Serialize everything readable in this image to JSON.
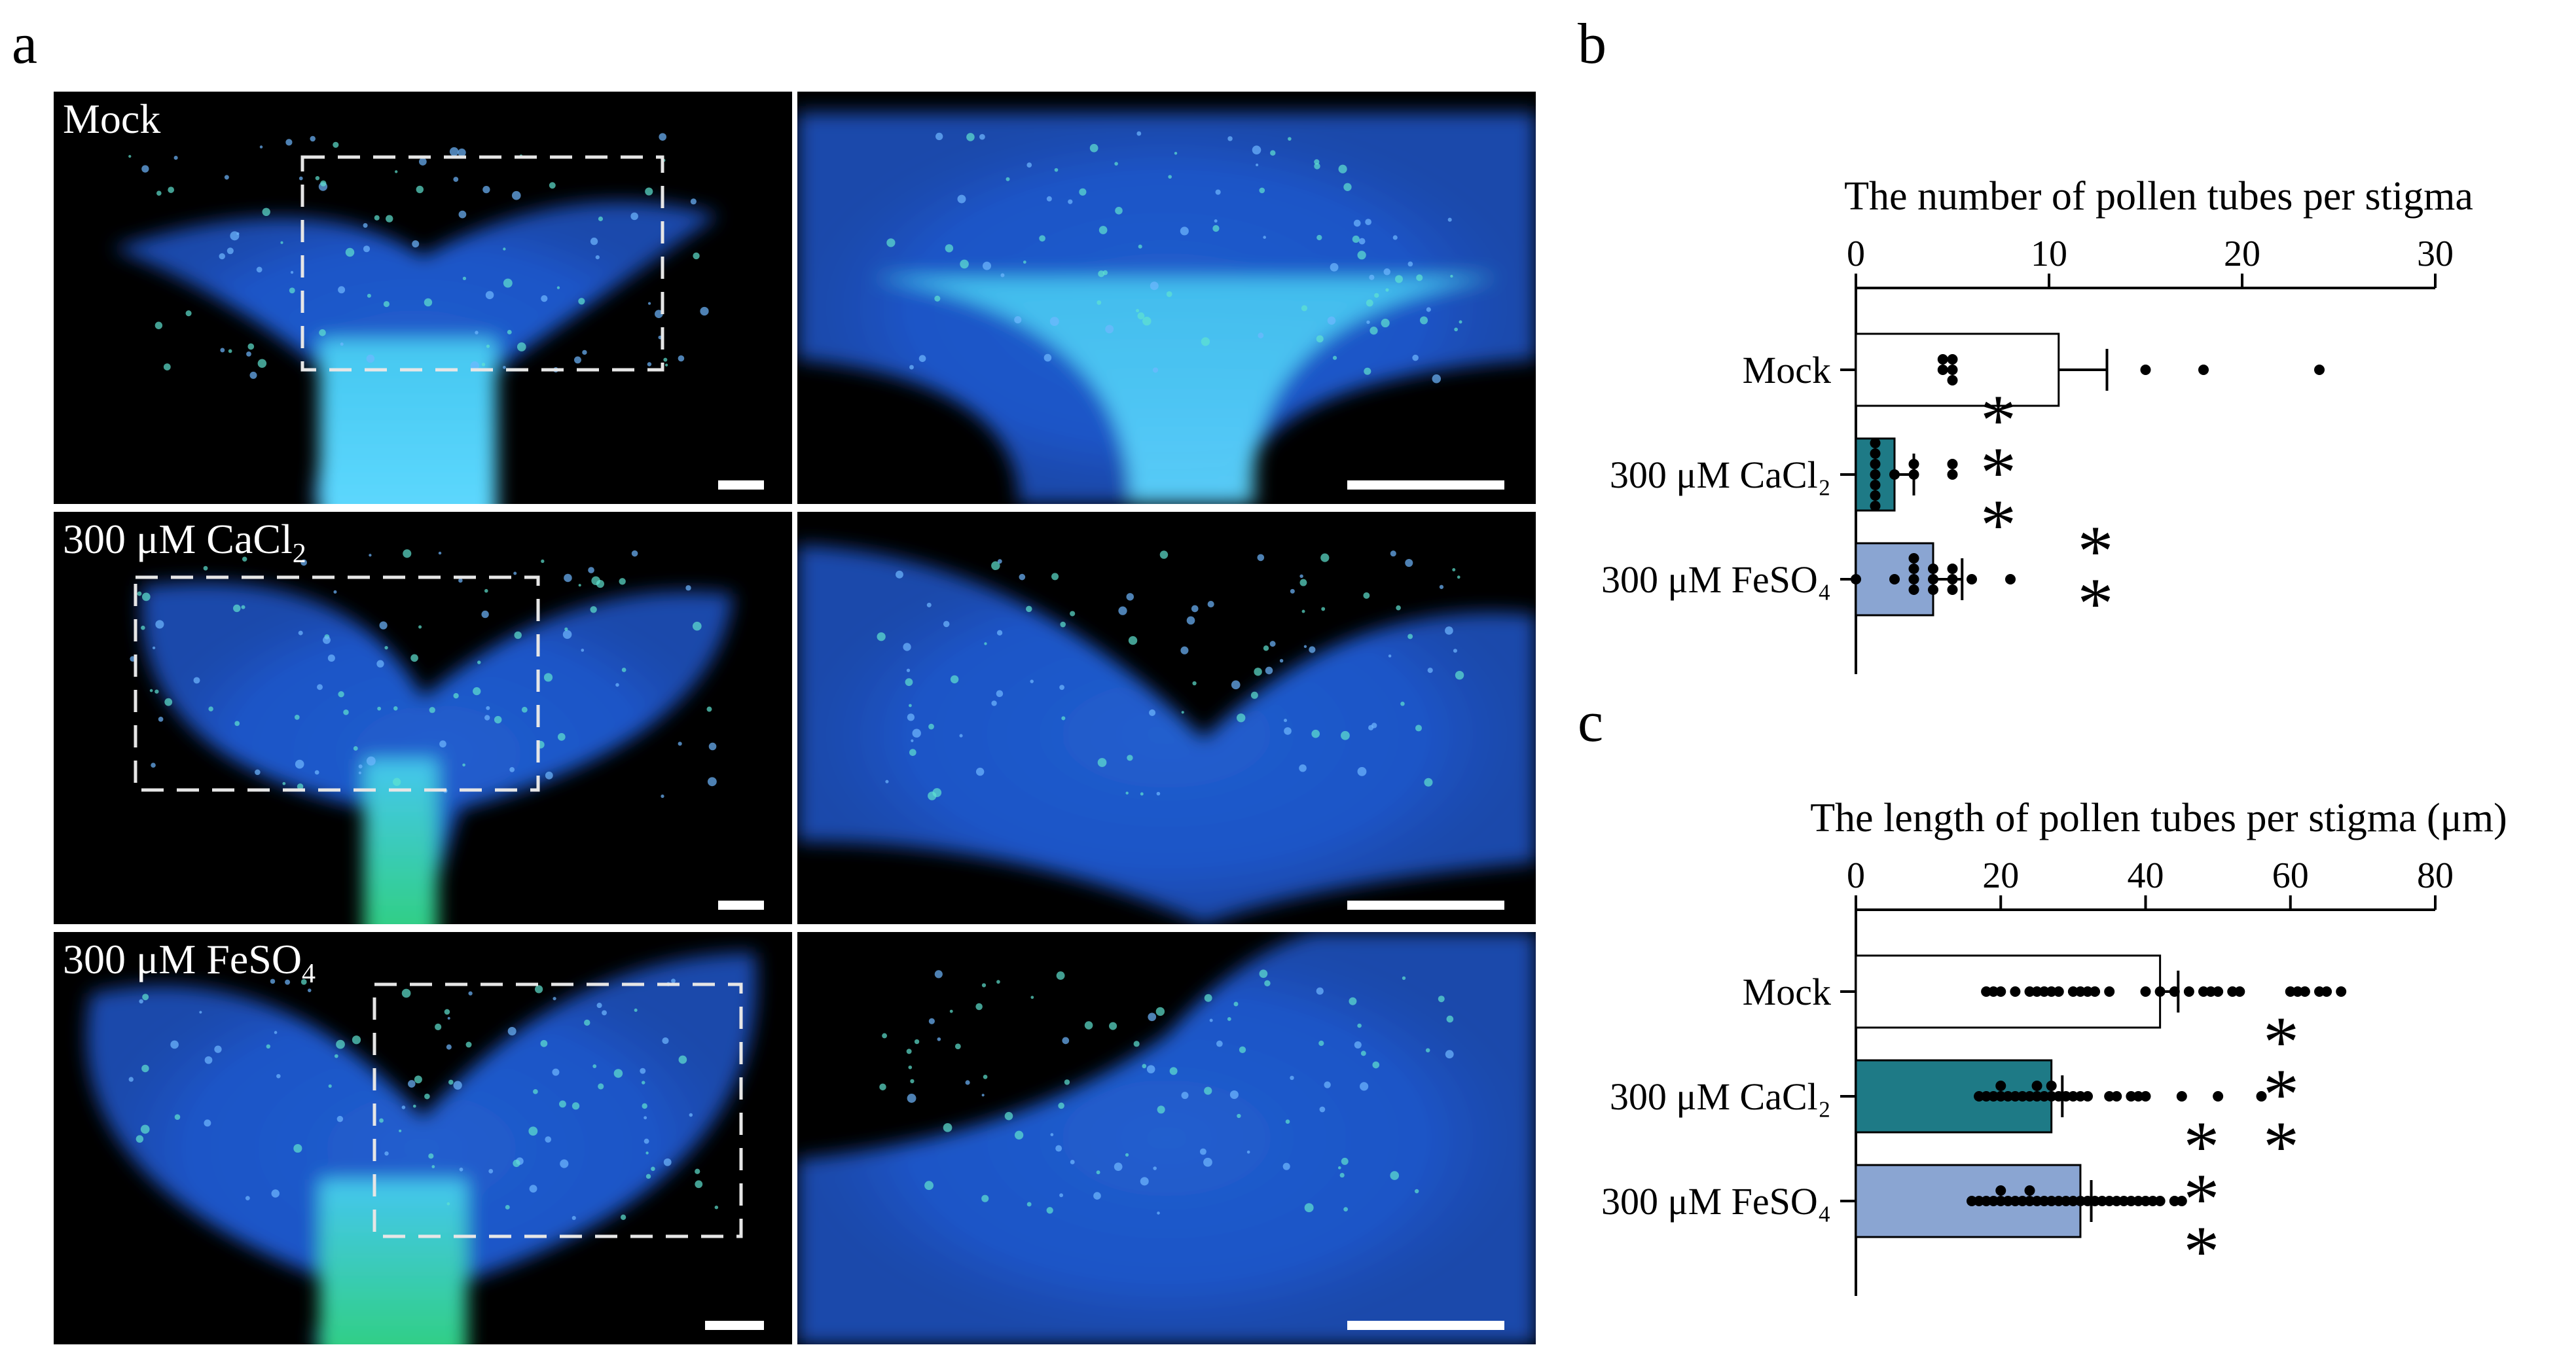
{
  "panel_letters": {
    "a": "a",
    "b": "b",
    "c": "c"
  },
  "micrographs": {
    "rows": [
      {
        "label": "Mock",
        "label_sub": "",
        "label_tail": ""
      },
      {
        "label": "300 μM CaCl",
        "label_sub": "2",
        "label_tail": ""
      },
      {
        "label": "300 μM FeSO",
        "label_sub": "4",
        "label_tail": ""
      }
    ]
  },
  "chart_data": [
    {
      "type": "bar",
      "orientation": "horizontal",
      "title": "The number of pollen tubes per stigma",
      "xlim": [
        0,
        30
      ],
      "xticks": [
        0,
        10,
        20,
        30
      ],
      "categories": [
        "Mock",
        "300 μM CaCl₂",
        "300 μM FeSO₄"
      ],
      "values": [
        10.5,
        2,
        4
      ],
      "errors": [
        2.5,
        1.0,
        1.5
      ],
      "significance": [
        "",
        "***",
        "**"
      ],
      "bar_colors": [
        "#ffffff",
        "#1e7a86",
        "#8aa5d2"
      ],
      "points": [
        [
          4.5,
          4.5,
          5,
          5,
          5,
          15,
          18,
          24
        ],
        [
          1,
          1,
          1,
          1,
          1,
          1,
          1,
          2,
          3,
          3,
          5,
          5
        ],
        [
          0,
          2,
          3,
          3,
          3,
          3,
          4,
          4,
          4,
          5,
          5,
          5,
          6,
          8
        ]
      ]
    },
    {
      "type": "bar",
      "orientation": "horizontal",
      "title": "The length of pollen tubes per stigma (μm)",
      "xlim": [
        0,
        80
      ],
      "xticks": [
        0,
        20,
        40,
        60,
        80
      ],
      "categories": [
        "Mock",
        "300 μM CaCl₂",
        "300 μM FeSO₄"
      ],
      "values": [
        42,
        27,
        31
      ],
      "errors": [
        2.5,
        1.5,
        1.5
      ],
      "significance": [
        "",
        "***",
        "***"
      ],
      "bar_colors": [
        "#ffffff",
        "#1e7a86",
        "#8aa5d2"
      ],
      "points": [
        [
          18,
          19,
          20,
          22,
          24,
          25,
          26,
          27,
          28,
          30,
          31,
          32,
          33,
          35,
          40,
          42,
          44,
          46,
          48,
          49,
          50,
          52,
          53,
          60,
          61,
          62,
          64,
          65,
          67
        ],
        [
          17,
          18,
          19,
          20,
          20,
          21,
          22,
          23,
          24,
          25,
          25,
          26,
          27,
          27,
          28,
          29,
          30,
          31,
          32,
          35,
          36,
          38,
          39,
          40,
          45,
          50,
          56
        ],
        [
          16,
          17,
          18,
          19,
          20,
          20,
          21,
          22,
          23,
          24,
          24,
          25,
          26,
          27,
          28,
          29,
          30,
          31,
          32,
          33,
          34,
          35,
          36,
          37,
          38,
          39,
          40,
          41,
          42,
          44,
          45
        ]
      ]
    }
  ]
}
